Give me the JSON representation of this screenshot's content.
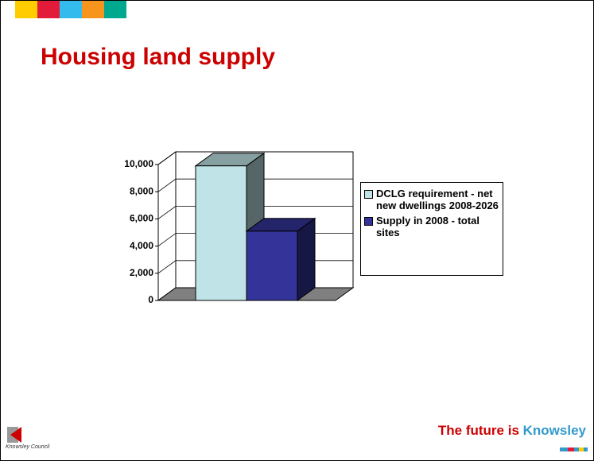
{
  "title": "Housing land supply",
  "chart_data": {
    "type": "bar3d",
    "series": [
      {
        "name": "DCLG requirement - net new dwellings 2008-2026",
        "color": "#bfe3e6",
        "values": [
          9900
        ]
      },
      {
        "name": "Supply in 2008 - total sites",
        "color": "#333399",
        "values": [
          5100
        ]
      }
    ],
    "ylim": [
      0,
      10000
    ],
    "yticks": [
      0,
      {
        "value": 2000,
        "label": "2,000"
      },
      {
        "value": 4000,
        "label": "4,000"
      },
      {
        "value": 6000,
        "label": "6,000"
      },
      {
        "value": 8000,
        "label": "8,000"
      },
      {
        "value": 10000,
        "label": "10,000"
      }
    ],
    "grid": true,
    "legend": "right"
  },
  "footer": {
    "tagline": "The future is",
    "brand": "Knowsley",
    "logo_text": "Knowsley Council"
  }
}
